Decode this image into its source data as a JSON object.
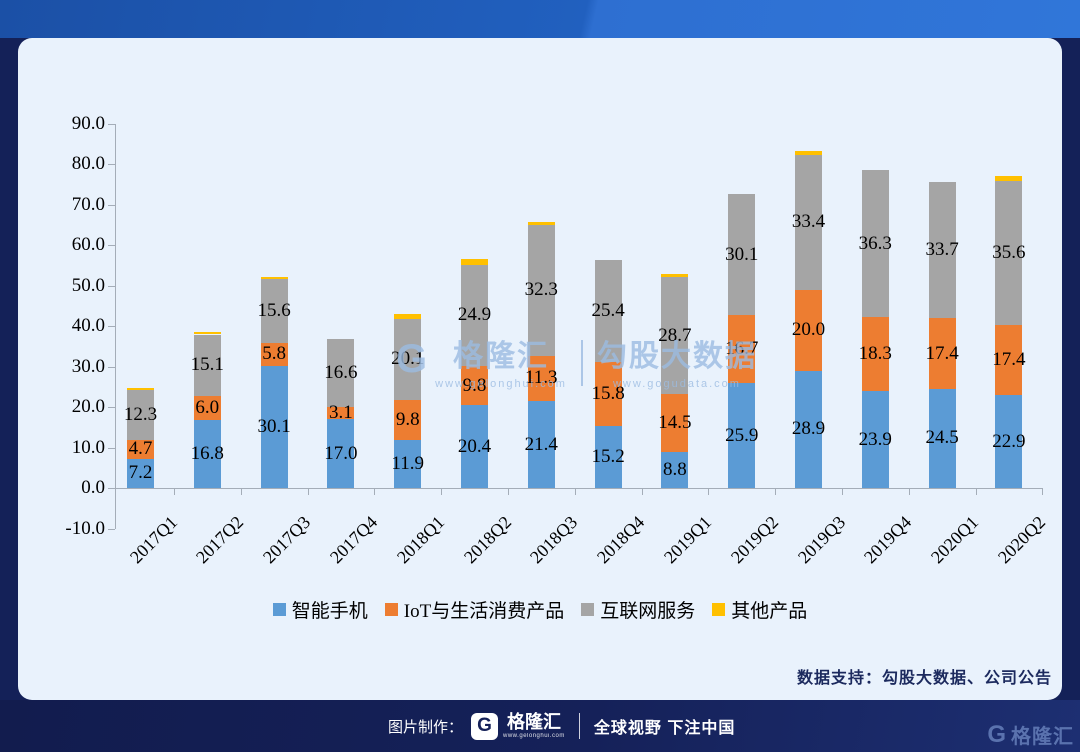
{
  "chart_data": {
    "type": "bar",
    "stacked": true,
    "title": "",
    "xlabel": "",
    "ylabel": "",
    "categories": [
      "2017Q1",
      "2017Q2",
      "2017Q3",
      "2017Q4",
      "2018Q1",
      "2018Q2",
      "2018Q3",
      "2018Q4",
      "2019Q1",
      "2019Q2",
      "2019Q3",
      "2019Q4",
      "2020Q1",
      "2020Q2"
    ],
    "series": [
      {
        "name": "智能手机",
        "color": "#5b9bd5",
        "labels_visible": true,
        "values": [
          7.2,
          16.8,
          30.1,
          17.0,
          11.9,
          20.4,
          21.4,
          15.2,
          8.8,
          25.9,
          28.9,
          23.9,
          24.5,
          22.9
        ]
      },
      {
        "name": "IoT与生活消费产品",
        "color": "#ed7d31",
        "labels_visible": true,
        "values": [
          4.7,
          6.0,
          5.8,
          3.1,
          9.8,
          9.8,
          11.3,
          15.8,
          14.5,
          16.7,
          20.0,
          18.3,
          17.4,
          17.4
        ]
      },
      {
        "name": "互联网服务",
        "color": "#a5a5a5",
        "labels_visible": true,
        "values": [
          12.3,
          15.1,
          15.6,
          16.6,
          20.1,
          24.9,
          32.3,
          25.4,
          28.7,
          30.1,
          33.4,
          36.3,
          33.7,
          35.6
        ]
      },
      {
        "name": "其他产品",
        "color": "#ffc000",
        "labels_visible": false,
        "estimated": true,
        "values": [
          0.6,
          0.7,
          0.6,
          0,
          1.1,
          1.5,
          0.7,
          0,
          0.8,
          0,
          0.8,
          0,
          0,
          1.1
        ]
      }
    ],
    "ylim": [
      -10,
      90
    ],
    "y_tick_labels": [
      "90.0",
      "80.0",
      "70.0",
      "60.0",
      "50.0",
      "40.0",
      "30.0",
      "20.0",
      "10.0",
      "0.0",
      "-10.0"
    ],
    "grid": false,
    "legend_position": "bottom"
  },
  "watermark": {
    "logo_letter": "G",
    "brand": "格隆汇",
    "brand_url": "www.gelonghui.com",
    "data_brand": "勾股大数据",
    "data_url": "www.gogudata.com"
  },
  "support": {
    "text": "数据支持：勾股大数据、公司公告"
  },
  "footer": {
    "made_by_label": "图片制作：",
    "logo_letter": "G",
    "brand": "格隆汇",
    "brand_url": "www.gelonghui.com",
    "slogan": "全球视野 下注中国",
    "right_logo_letter": "G",
    "right_brand": "格隆汇"
  }
}
